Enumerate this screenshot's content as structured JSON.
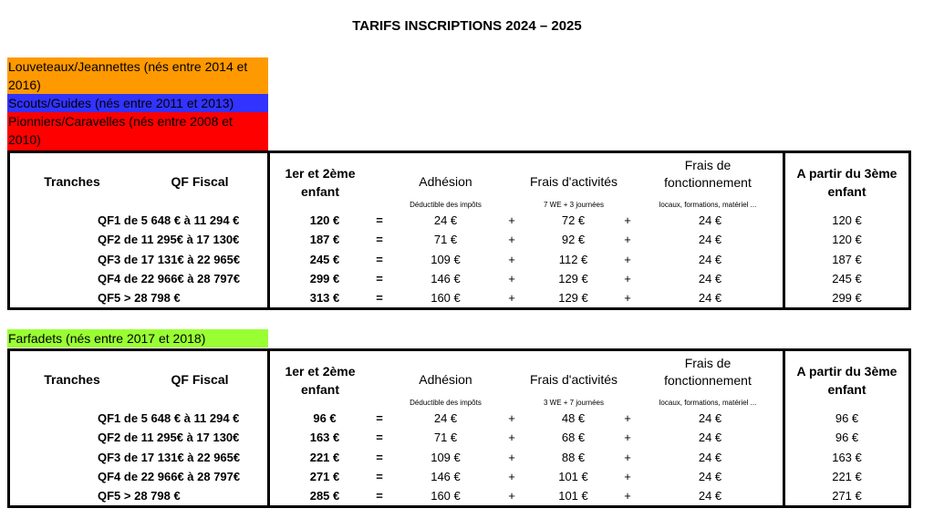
{
  "title": "TARIFS INSCRIPTIONS 2024 – 2025",
  "colors": {
    "orange": "#FF9900",
    "blue": "#3333FF",
    "red": "#FF0000",
    "green": "#99FF33"
  },
  "groups_top": [
    {
      "label": "Louveteaux/Jeannettes (nés entre 2014 et 2016)",
      "color": "#FF9900"
    },
    {
      "label": "Scouts/Guides (nés entre 2011 et 2013)",
      "color": "#3333FF"
    },
    {
      "label": "Pionniers/Caravelles (nés entre 2008 et 2010)",
      "color": "#FF0000"
    }
  ],
  "group_bottom": {
    "label": "Farfadets (nés entre 2017 et 2018)",
    "color": "#99FF33"
  },
  "headers": {
    "tranches": "Tranches",
    "qf": "QF Fiscal",
    "enfant1": "1er et 2ème",
    "enfant2": "enfant",
    "adhesion": "Adhésion",
    "adhesion_note": "Déductible des impôts",
    "frais_act": "Frais d'activités",
    "frais_fonc1": "Frais de",
    "frais_fonc2": "fonctionnement",
    "frais_fonc_note": "locaux, formations, matériel ...",
    "troisieme1": "A partir du 3ème",
    "troisieme2": "enfant"
  },
  "table_top": {
    "activites_note": "7 WE + 3 journées",
    "rows": [
      {
        "qf": "QF1  de 5 648 € à 11 294 €",
        "total": "120 €",
        "eq": "=",
        "adhesion": "24 €",
        "plus1": "+",
        "activites": "72 €",
        "plus2": "+",
        "fonc": "24 €",
        "troisieme": "120 €"
      },
      {
        "qf": "QF2  de 11 295€ à 17 130€",
        "total": "187 €",
        "eq": "=",
        "adhesion": "71 €",
        "plus1": "+",
        "activites": "92 €",
        "plus2": "+",
        "fonc": "24 €",
        "troisieme": "120 €"
      },
      {
        "qf": "QF3  de 17 131€ à 22 965€",
        "total": "245 €",
        "eq": "=",
        "adhesion": "109 €",
        "plus1": "+",
        "activites": "112 €",
        "plus2": "+",
        "fonc": "24 €",
        "troisieme": "187 €"
      },
      {
        "qf": "QF4  de 22 966€ à 28 797€",
        "total": "299 €",
        "eq": "=",
        "adhesion": "146 €",
        "plus1": "+",
        "activites": "129 €",
        "plus2": "+",
        "fonc": "24 €",
        "troisieme": "245 €"
      },
      {
        "qf": "QF5  > 28 798 €",
        "total": "313 €",
        "eq": "=",
        "adhesion": "160 €",
        "plus1": "+",
        "activites": "129 €",
        "plus2": "+",
        "fonc": "24 €",
        "troisieme": "299 €"
      }
    ]
  },
  "table_bottom": {
    "activites_note": "3 WE + 7 journées",
    "rows": [
      {
        "qf": "QF1  de 5 648 € à 11 294 €",
        "total": "96 €",
        "eq": "=",
        "adhesion": "24 €",
        "plus1": "+",
        "activites": "48 €",
        "plus2": "+",
        "fonc": "24 €",
        "troisieme": "96 €"
      },
      {
        "qf": "QF2  de 11 295€ à 17 130€",
        "total": "163 €",
        "eq": "=",
        "adhesion": "71 €",
        "plus1": "+",
        "activites": "68 €",
        "plus2": "+",
        "fonc": "24 €",
        "troisieme": "96 €"
      },
      {
        "qf": "QF3  de 17 131€ à 22 965€",
        "total": "221 €",
        "eq": "=",
        "adhesion": "109 €",
        "plus1": "+",
        "activites": "88 €",
        "plus2": "+",
        "fonc": "24 €",
        "troisieme": "163 €"
      },
      {
        "qf": "QF4  de 22 966€ à 28 797€",
        "total": "271 €",
        "eq": "=",
        "adhesion": "146 €",
        "plus1": "+",
        "activites": "101 €",
        "plus2": "+",
        "fonc": "24 €",
        "troisieme": "221 €"
      },
      {
        "qf": "QF5  > 28 798 €",
        "total": "285 €",
        "eq": "=",
        "adhesion": "160 €",
        "plus1": "+",
        "activites": "101 €",
        "plus2": "+",
        "fonc": "24 €",
        "troisieme": "271 €"
      }
    ]
  }
}
